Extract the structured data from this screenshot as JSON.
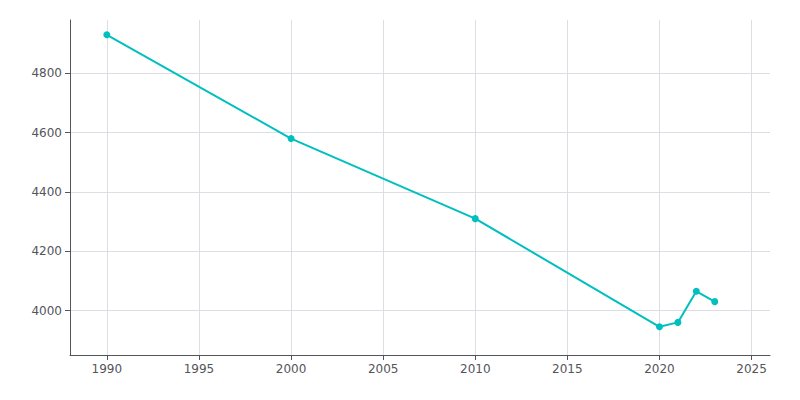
{
  "chart_data": {
    "type": "line",
    "x": [
      1990,
      2000,
      2010,
      2020,
      2021,
      2022,
      2023
    ],
    "values": [
      4930,
      4580,
      4310,
      3945,
      3960,
      4065,
      4030
    ],
    "color": "#00BFBF",
    "marker": "circle",
    "xlim": [
      1988,
      2026
    ],
    "ylim": [
      3850,
      4980
    ],
    "xticks": [
      1990,
      1995,
      2000,
      2005,
      2010,
      2015,
      2020,
      2025
    ],
    "yticks": [
      4000,
      4200,
      4400,
      4600,
      4800
    ],
    "grid": true
  }
}
